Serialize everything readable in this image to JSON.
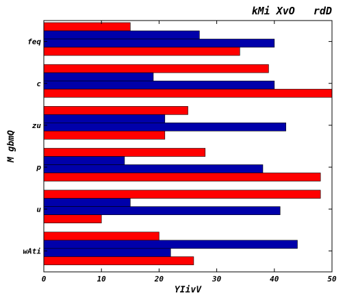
{
  "chart_data": {
    "type": "bar",
    "orientation": "horizontal",
    "title": "kMi XvO   rdD",
    "xlabel": "YIivV",
    "ylabel": "M gbmQ",
    "xlim": [
      0,
      50
    ],
    "xticks": [
      0,
      10,
      20,
      30,
      40,
      50
    ],
    "categories": [
      "feq",
      "c",
      "zu",
      "p",
      "u",
      "wAti"
    ],
    "bar_order_top_to_bottom": [
      "red",
      "blue",
      "blue",
      "red"
    ],
    "groups": [
      {
        "category": "feq",
        "values": [
          15,
          27,
          40,
          34
        ]
      },
      {
        "category": "c",
        "values": [
          39,
          19,
          40,
          50
        ]
      },
      {
        "category": "zu",
        "values": [
          25,
          21,
          42,
          21
        ]
      },
      {
        "category": "p",
        "values": [
          28,
          14,
          38,
          48
        ]
      },
      {
        "category": "u",
        "values": [
          48,
          15,
          41,
          10
        ]
      },
      {
        "category": "wAti",
        "values": [
          20,
          44,
          22,
          26
        ]
      }
    ],
    "grid": false,
    "legend": "none"
  },
  "colors": {
    "red": "#ff0000",
    "blue": "#0000aa"
  }
}
